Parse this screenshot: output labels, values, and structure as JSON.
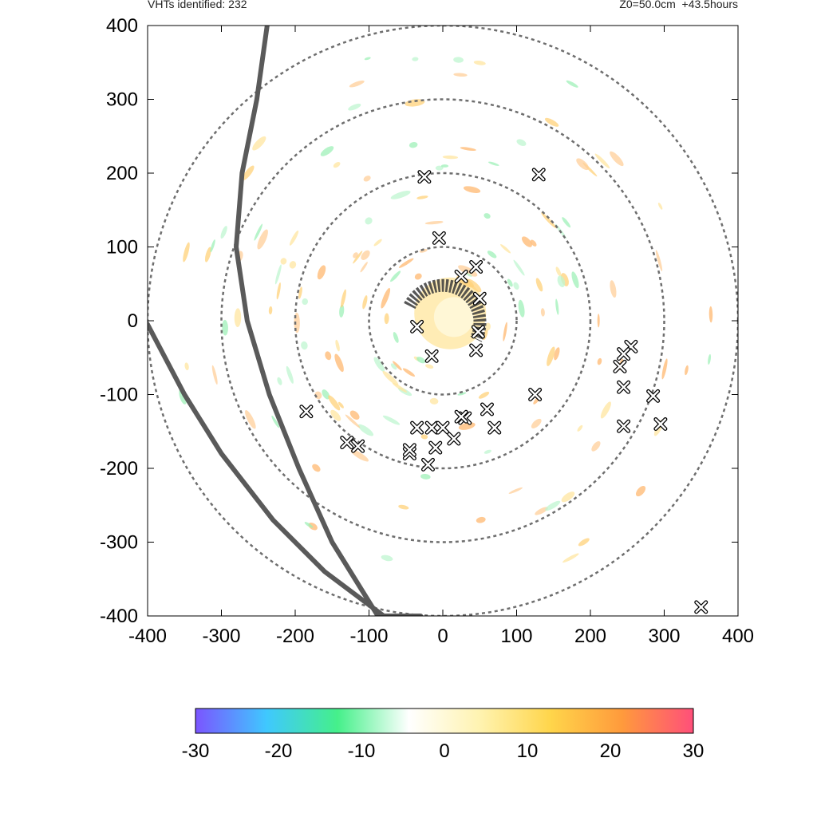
{
  "header": {
    "left": "VHTs identified: 232",
    "right": "Z0=50.0cm  +43.5hours"
  },
  "chart_data": {
    "type": "scatter",
    "xlim": [
      -400,
      400
    ],
    "ylim": [
      -400,
      400
    ],
    "xticks": [
      -400,
      -300,
      -200,
      -100,
      0,
      100,
      200,
      300,
      400
    ],
    "yticks": [
      -400,
      -300,
      -200,
      -100,
      0,
      100,
      200,
      300,
      400
    ],
    "grid": false,
    "range_rings": [
      100,
      200,
      300,
      400
    ],
    "colorbar": {
      "min": -30,
      "max": 30,
      "ticks": [
        "-30",
        "-20",
        "-10",
        "0",
        "10",
        "20",
        "30"
      ],
      "colors": [
        "#7b55ff",
        "#3fc8ff",
        "#45f08a",
        "#ffffff",
        "#fff3b0",
        "#ffd54a",
        "#ff9a3c",
        "#ff4f7a"
      ]
    },
    "vht_points": [
      [
        -25,
        195
      ],
      [
        130,
        198
      ],
      [
        -5,
        112
      ],
      [
        45,
        73
      ],
      [
        25,
        60
      ],
      [
        50,
        30
      ],
      [
        48,
        -15
      ],
      [
        -35,
        -8
      ],
      [
        -15,
        -48
      ],
      [
        45,
        -40
      ],
      [
        125,
        -100
      ],
      [
        -185,
        -123
      ],
      [
        -130,
        -165
      ],
      [
        -115,
        -170
      ],
      [
        -35,
        -145
      ],
      [
        -15,
        -145
      ],
      [
        -10,
        -172
      ],
      [
        -20,
        -195
      ],
      [
        0,
        -145
      ],
      [
        15,
        -160
      ],
      [
        30,
        -132
      ],
      [
        60,
        -120
      ],
      [
        70,
        -145
      ],
      [
        -45,
        -180
      ],
      [
        -45,
        -175
      ],
      [
        255,
        -35
      ],
      [
        245,
        -45
      ],
      [
        240,
        -62
      ],
      [
        245,
        -90
      ],
      [
        285,
        -102
      ],
      [
        245,
        -143
      ],
      [
        295,
        -140
      ],
      [
        350,
        -388
      ],
      [
        25,
        -130
      ]
    ],
    "tracks": [
      {
        "points": [
          [
            -238,
            400
          ],
          [
            -252,
            300
          ],
          [
            -272,
            200
          ],
          [
            -280,
            100
          ],
          [
            -265,
            0
          ],
          [
            -235,
            -100
          ],
          [
            -195,
            -200
          ],
          [
            -150,
            -300
          ],
          [
            -88,
            -400
          ],
          [
            -30,
            -400
          ]
        ]
      },
      {
        "points": [
          [
            -400,
            -5
          ],
          [
            -350,
            -100
          ],
          [
            -300,
            -180
          ],
          [
            -230,
            -270
          ],
          [
            -160,
            -340
          ],
          [
            -80,
            -400
          ]
        ]
      }
    ]
  }
}
